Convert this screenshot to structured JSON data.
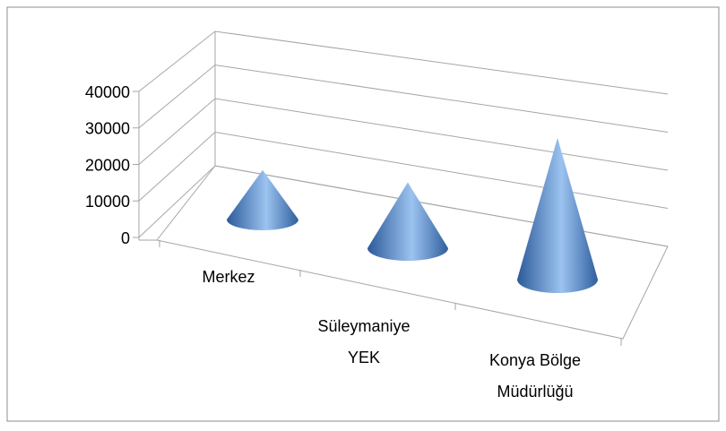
{
  "chart_data": {
    "type": "cone3d",
    "categories": [
      "Merkez",
      "Süleymaniye YEK",
      "Konya Bölge Müdürlüğü"
    ],
    "values": [
      12000,
      15000,
      31000
    ],
    "color": "#4f81bd",
    "ylim": [
      0,
      40000
    ],
    "yticks": [
      0,
      10000,
      20000,
      30000,
      40000
    ],
    "grid": true
  }
}
